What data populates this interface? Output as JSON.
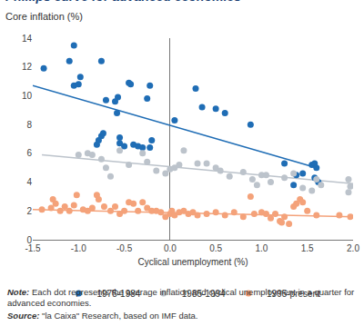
{
  "chart_data": {
    "type": "scatter",
    "title": "Phillips curve for advanced economies",
    "subtitle": "Core inflation (%)",
    "x_label": "Cyclical unemployment (%)",
    "note_label": "Note:",
    "note": "Each dot represents the average inflation and cyclical unemployment in a quarter for advanced economies.",
    "source_label": "Source:",
    "source": "\"la Caixa\" Research, based on IMF data.",
    "xlim": [
      -1.5,
      2.0
    ],
    "xticks": [
      -1.5,
      {
        "value": -1.0,
        "label": "-1.0"
      },
      -0.5,
      {
        "value": 0,
        "label": "0.0"
      },
      0.5,
      {
        "value": 1.0,
        "label": "1.0"
      },
      1.5,
      {
        "value": 2.0,
        "label": "2.0"
      }
    ],
    "ylim": [
      0,
      14
    ],
    "yticks": [
      0,
      2,
      4,
      6,
      8,
      10,
      12,
      14
    ],
    "grid": false,
    "legend": "bottom",
    "series": [
      {
        "name": "1975-1984",
        "color": "#1f6db5",
        "marker": "circle",
        "x": [
          -1.38,
          -1.1,
          -1.05,
          -1.05,
          -1.0,
          -0.98,
          -0.75,
          -0.8,
          -0.78,
          -0.75,
          -0.73,
          -0.7,
          -0.6,
          -0.58,
          -0.57,
          -0.55,
          -0.55,
          -0.5,
          -0.45,
          -0.43,
          -0.4,
          -0.35,
          -0.3,
          -0.22,
          -0.25,
          -0.2,
          -0.22,
          0.05,
          0.28,
          0.35,
          0.5,
          0.6,
          0.88,
          1.25,
          1.35,
          1.38,
          1.45,
          1.55,
          1.58,
          1.6,
          1.58,
          1.62
        ],
        "values": [
          11.9,
          12.4,
          13.5,
          10.7,
          10.8,
          11.3,
          12.4,
          6.6,
          6.9,
          7.2,
          7.4,
          9.7,
          9.6,
          8.8,
          9.9,
          7.1,
          6.7,
          6.5,
          10.9,
          10.8,
          6.6,
          6.5,
          6.4,
          10.7,
          9.8,
          6.9,
          6.4,
          8.3,
          10.5,
          9.2,
          9.1,
          8.8,
          8.0,
          5.3,
          3.8,
          4.5,
          4.6,
          5.2,
          5.3,
          5.0,
          4.3,
          4.0
        ],
        "trend_x": [
          -1.5,
          1.6
        ],
        "trend_values": [
          10.7,
          5.0
        ]
      },
      {
        "name": "1985-1994",
        "color": "#bcc3cb",
        "marker": "circle",
        "x": [
          -1.0,
          -0.9,
          -0.85,
          -0.75,
          -0.7,
          -0.65,
          -0.55,
          -0.45,
          -0.3,
          -0.25,
          -0.15,
          -0.05,
          0.0,
          0.05,
          0.1,
          0.15,
          0.3,
          0.4,
          0.5,
          0.55,
          0.65,
          0.8,
          0.9,
          0.95,
          1.0,
          1.05,
          1.1,
          1.25,
          1.35,
          1.45,
          1.55,
          1.6,
          1.65,
          1.95,
          1.97,
          1.95
        ],
        "values": [
          5.9,
          6.0,
          5.9,
          5.6,
          5.0,
          4.4,
          6.2,
          5.2,
          6.0,
          5.4,
          4.8,
          4.6,
          4.9,
          5.0,
          5.2,
          6.2,
          5.3,
          5.3,
          5.0,
          4.8,
          4.4,
          4.7,
          4.2,
          3.8,
          4.5,
          4.5,
          4.0,
          4.3,
          4.6,
          3.6,
          3.4,
          4.2,
          3.8,
          4.2,
          3.7,
          3.3
        ],
        "trend_x": [
          -1.4,
          2.0
        ],
        "trend_values": [
          5.9,
          3.9
        ]
      },
      {
        "name": "1995-present",
        "color": "#f4a27a",
        "marker": "circle",
        "x": [
          -1.4,
          -1.3,
          -1.28,
          -1.25,
          -1.2,
          -1.15,
          -1.1,
          -1.05,
          -1.02,
          -0.95,
          -0.9,
          -0.85,
          -0.8,
          -0.78,
          -0.72,
          -0.65,
          -0.6,
          -0.55,
          -0.5,
          -0.45,
          -0.4,
          -0.35,
          -0.3,
          -0.25,
          -0.2,
          -0.15,
          -0.1,
          -0.05,
          0.0,
          0.02,
          0.05,
          0.1,
          0.15,
          0.2,
          0.25,
          0.3,
          0.4,
          0.5,
          0.6,
          0.7,
          0.8,
          0.88,
          0.92,
          1.0,
          1.05,
          1.1,
          1.15,
          1.2,
          1.22,
          1.25,
          1.3,
          1.35,
          1.38,
          1.42,
          1.45,
          1.5,
          1.6,
          1.85,
          1.97
        ],
        "values": [
          2.1,
          2.2,
          2.8,
          2.5,
          2.0,
          2.3,
          2.0,
          2.4,
          3.1,
          2.1,
          2.0,
          2.2,
          3.1,
          2.8,
          2.3,
          2.0,
          2.3,
          1.8,
          2.0,
          2.6,
          2.5,
          2.0,
          2.6,
          2.2,
          2.0,
          2.0,
          1.9,
          1.6,
          1.8,
          2.0,
          1.7,
          1.9,
          2.0,
          1.8,
          1.9,
          1.7,
          1.8,
          1.9,
          1.7,
          1.9,
          1.6,
          3.0,
          1.8,
          1.9,
          1.8,
          1.5,
          1.8,
          1.3,
          1.2,
          1.6,
          1.1,
          2.3,
          2.5,
          2.8,
          2.6,
          2.0,
          1.7,
          1.7,
          1.6
        ],
        "trend_x": [
          -1.5,
          2.0
        ],
        "trend_values": [
          2.1,
          1.6
        ]
      }
    ]
  }
}
